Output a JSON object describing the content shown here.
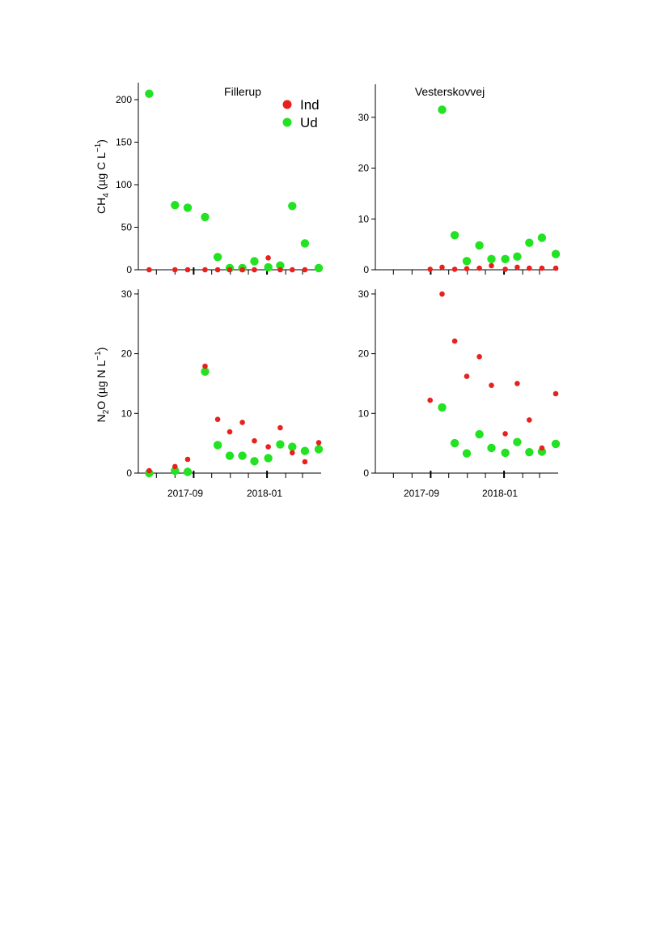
{
  "colors": {
    "ind": "#e8201e",
    "ud": "#21e321",
    "axis": "#000000"
  },
  "legend": {
    "ind_label": "Ind",
    "ud_label": "Ud",
    "placement": "top-right of first panel"
  },
  "panel_titles": {
    "fillerup": "Fillerup",
    "vesterskovvej": "Vesterskovvej"
  },
  "ylabels": {
    "ch4": {
      "a": "CH",
      "sub": "4",
      "b": " (µg C L",
      "sup": "−1",
      "c": ")"
    },
    "n2o": {
      "a": "N",
      "sub": "2",
      "b": "O (µg N L",
      "sup": "−1",
      "c": ")"
    }
  },
  "x_tick_labels": [
    "2017-09",
    "2018-01"
  ],
  "chart_data": [
    {
      "type": "scatter",
      "title": "Fillerup",
      "ylabel": "CH4 (µg C L−1)",
      "xlim": [
        "2017-06-01",
        "2018-04-01"
      ],
      "ylim": [
        0,
        220
      ],
      "yticks": [
        0,
        50,
        100,
        150,
        200
      ],
      "grid": false,
      "series": [
        {
          "name": "Ind",
          "x": [
            "2017-06-19",
            "2017-08-01",
            "2017-08-22",
            "2017-09-20",
            "2017-10-11",
            "2017-10-31",
            "2017-11-21",
            "2017-12-11",
            "2018-01-03",
            "2018-01-23",
            "2018-02-12",
            "2018-03-05"
          ],
          "y": [
            0,
            0,
            0,
            0,
            0,
            0,
            0,
            0,
            14,
            0,
            0,
            0
          ]
        },
        {
          "name": "Ud",
          "x": [
            "2017-06-19",
            "2017-08-01",
            "2017-08-22",
            "2017-09-20",
            "2017-10-11",
            "2017-10-31",
            "2017-11-21",
            "2017-12-11",
            "2018-01-03",
            "2018-01-23",
            "2018-02-12",
            "2018-03-05",
            "2018-03-28"
          ],
          "y": [
            207,
            76,
            73,
            62,
            15,
            2,
            2,
            10,
            3,
            5,
            75,
            31,
            2
          ]
        }
      ]
    },
    {
      "type": "scatter",
      "title": "Vesterskovvej",
      "ylabel": "",
      "xlim": [
        "2017-06-01",
        "2018-04-01"
      ],
      "ylim": [
        0,
        36.5
      ],
      "yticks": [
        0,
        10,
        20,
        30
      ],
      "grid": false,
      "series": [
        {
          "name": "Ind",
          "x": [
            "2017-08-31",
            "2017-09-20",
            "2017-10-11",
            "2017-10-31",
            "2017-11-21",
            "2017-12-11",
            "2018-01-03",
            "2018-01-23",
            "2018-02-12",
            "2018-03-05",
            "2018-03-28"
          ],
          "y": [
            0.1,
            0.5,
            0.1,
            0.2,
            0.3,
            0.8,
            0.1,
            0.5,
            0.3,
            0.3,
            0.3
          ]
        },
        {
          "name": "Ud",
          "x": [
            "2017-09-20",
            "2017-10-11",
            "2017-10-31",
            "2017-11-21",
            "2017-12-11",
            "2018-01-03",
            "2018-01-23",
            "2018-02-12",
            "2018-03-05",
            "2018-03-28"
          ],
          "y": [
            31.5,
            6.8,
            1.7,
            4.8,
            2.1,
            2.1,
            2.6,
            5.3,
            6.3,
            3.1
          ]
        }
      ]
    },
    {
      "type": "scatter",
      "title": "Fillerup",
      "ylabel": "N2O (µg N L−1)",
      "xlim": [
        "2017-06-01",
        "2018-04-01"
      ],
      "ylim": [
        0,
        30.8
      ],
      "yticks": [
        0,
        10,
        20,
        30
      ],
      "grid": false,
      "series": [
        {
          "name": "Ind",
          "x": [
            "2017-06-19",
            "2017-08-01",
            "2017-08-22",
            "2017-09-20",
            "2017-10-11",
            "2017-10-31",
            "2017-11-21",
            "2017-12-11",
            "2018-01-03",
            "2018-01-23",
            "2018-02-12",
            "2018-03-05",
            "2018-03-28"
          ],
          "y": [
            0.4,
            1.1,
            2.3,
            17.9,
            9.0,
            6.9,
            8.5,
            5.4,
            4.4,
            7.6,
            3.4,
            1.9,
            5.1
          ]
        },
        {
          "name": "Ud",
          "x": [
            "2017-06-19",
            "2017-08-01",
            "2017-08-22",
            "2017-09-20",
            "2017-10-11",
            "2017-10-31",
            "2017-11-21",
            "2017-12-11",
            "2018-01-03",
            "2018-01-23",
            "2018-02-12",
            "2018-03-05",
            "2018-03-28"
          ],
          "y": [
            0,
            0.4,
            0.2,
            17.0,
            4.7,
            2.9,
            2.9,
            2.0,
            2.5,
            4.8,
            4.4,
            3.7,
            4.0
          ]
        }
      ]
    },
    {
      "type": "scatter",
      "title": "Vesterskovvej",
      "ylabel": "",
      "xlim": [
        "2017-06-01",
        "2018-04-01"
      ],
      "ylim": [
        0,
        30.8
      ],
      "yticks": [
        0,
        10,
        20,
        30
      ],
      "grid": false,
      "series": [
        {
          "name": "Ind",
          "x": [
            "2017-08-31",
            "2017-09-20",
            "2017-10-11",
            "2017-10-31",
            "2017-11-21",
            "2017-12-11",
            "2018-01-03",
            "2018-01-23",
            "2018-02-12",
            "2018-03-05",
            "2018-03-28"
          ],
          "y": [
            12.2,
            30.0,
            22.1,
            16.2,
            19.5,
            14.7,
            6.6,
            15.0,
            8.9,
            4.2,
            13.3
          ]
        },
        {
          "name": "Ud",
          "x": [
            "2017-09-20",
            "2017-10-11",
            "2017-10-31",
            "2017-11-21",
            "2017-12-11",
            "2018-01-03",
            "2018-01-23",
            "2018-02-12",
            "2018-03-05",
            "2018-03-28"
          ],
          "y": [
            11.0,
            5.0,
            3.3,
            6.5,
            4.2,
            3.4,
            5.2,
            3.5,
            3.6,
            4.9
          ]
        }
      ]
    }
  ]
}
